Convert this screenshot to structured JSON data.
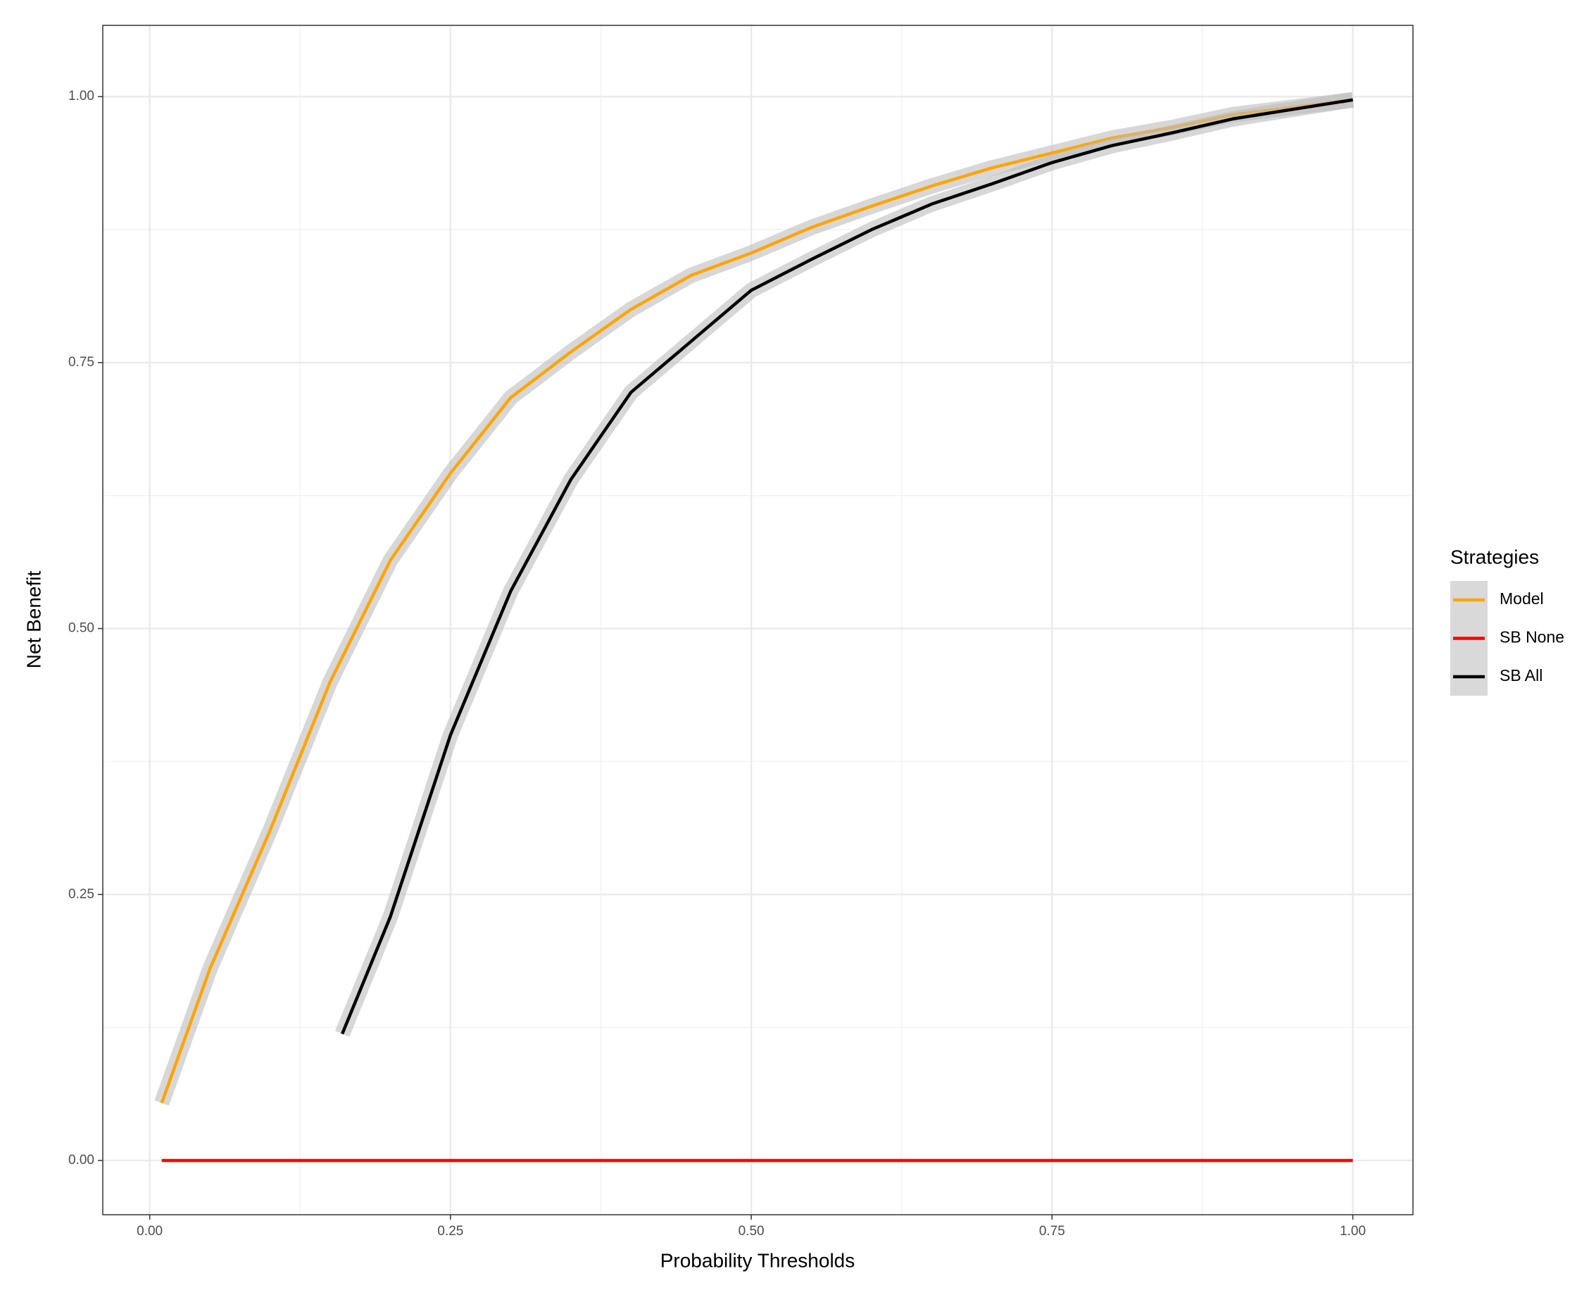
{
  "chart_data": {
    "type": "line",
    "x_label": "Probability Thresholds",
    "y_label": "Net Benefit",
    "legend_title": "Strategies",
    "xlim": [
      -0.039,
      1.05
    ],
    "ylim": [
      -0.051,
      1.067
    ],
    "xticks": [
      {
        "value": 0,
        "label": "0.00"
      },
      0.25,
      {
        "value": 0.5,
        "label": "0.50"
      },
      0.75,
      {
        "value": 1,
        "label": "1.00"
      }
    ],
    "yticks": [
      {
        "value": 0,
        "label": "0.00"
      },
      0.25,
      {
        "value": 0.5,
        "label": "0.50"
      },
      0.75,
      {
        "value": 1,
        "label": "1.00"
      }
    ],
    "grid": true,
    "legend": "right",
    "series": [
      {
        "name": "Model",
        "color": "#ffa500",
        "x": [
          0.01,
          0.05,
          0.1,
          0.15,
          0.2,
          0.25,
          0.3,
          0.35,
          0.4,
          0.45,
          0.5,
          0.55,
          0.6,
          0.65,
          0.7,
          0.75,
          0.8,
          0.85,
          0.9,
          0.95,
          1.0
        ],
        "values": [
          0.054,
          0.18,
          0.31,
          0.45,
          0.564,
          0.646,
          0.717,
          0.76,
          0.8,
          0.832,
          0.853,
          0.877,
          0.897,
          0.916,
          0.933,
          0.947,
          0.961,
          0.971,
          0.983,
          0.99,
          0.997
        ]
      },
      {
        "name": "SB None",
        "color": "#ff0000",
        "x": [
          0.01,
          1.0
        ],
        "values": [
          0,
          0
        ]
      },
      {
        "name": "SB All",
        "color": "#000000",
        "x": [
          0.16,
          0.2,
          0.25,
          0.3,
          0.35,
          0.4,
          0.45,
          0.5,
          0.55,
          0.6,
          0.65,
          0.7,
          0.75,
          0.8,
          0.85,
          0.9,
          0.95,
          1.0
        ],
        "values": [
          0.119,
          0.229,
          0.4,
          0.535,
          0.64,
          0.722,
          0.77,
          0.818,
          0.847,
          0.875,
          0.899,
          0.918,
          0.938,
          0.954,
          0.966,
          0.979,
          0.988,
          0.997
        ]
      }
    ]
  }
}
